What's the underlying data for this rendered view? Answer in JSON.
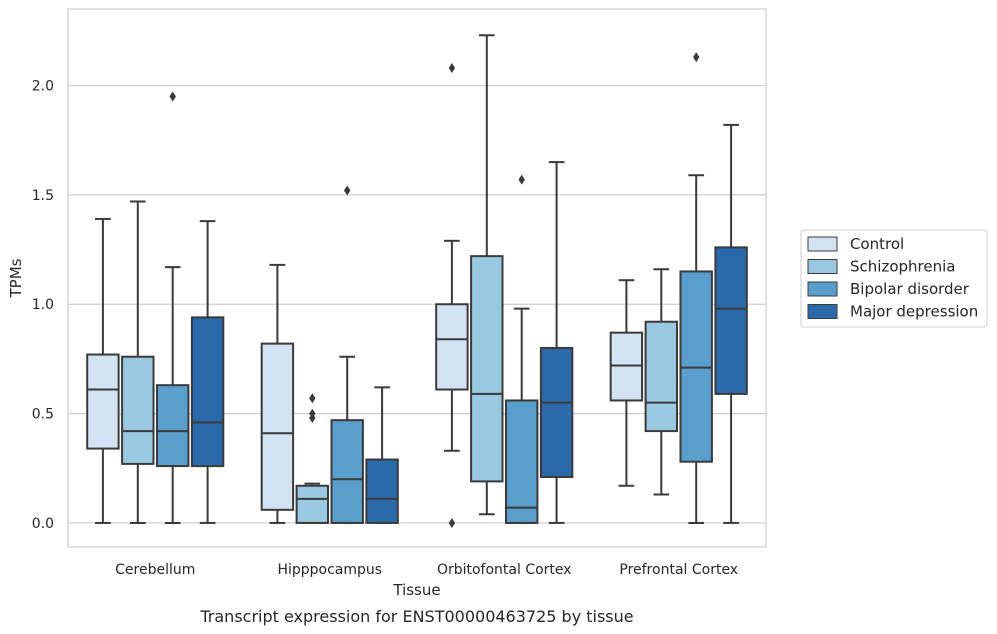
{
  "chart_data": {
    "type": "box",
    "caption": "Transcript expression for ENST00000463725 by tissue",
    "xlabel": "Tissue",
    "ylabel": "TPMs",
    "ylim": [
      -0.11,
      2.35
    ],
    "yticks": [
      0.0,
      0.5,
      1.0,
      1.5,
      2.0
    ],
    "ytick_labels": [
      "0.0",
      "0.5",
      "1.0",
      "1.5",
      "2.0"
    ],
    "grid": "horizontal",
    "legend_position": "outside-right",
    "categories": [
      "Cerebellum",
      "Hipppocampus",
      "Orbitofontal Cortex",
      "Prefrontal Cortex"
    ],
    "series": [
      {
        "name": "Control",
        "color": "#d3e3f3",
        "boxes": [
          {
            "whislo": 0.0,
            "q1": 0.34,
            "med": 0.61,
            "q3": 0.77,
            "whishi": 1.39,
            "fliers": []
          },
          {
            "whislo": 0.0,
            "q1": 0.06,
            "med": 0.41,
            "q3": 0.82,
            "whishi": 1.18,
            "fliers": []
          },
          {
            "whislo": 0.33,
            "q1": 0.61,
            "med": 0.84,
            "q3": 1.0,
            "whishi": 1.29,
            "fliers": [
              0.0,
              2.08
            ]
          },
          {
            "whislo": 0.17,
            "q1": 0.56,
            "med": 0.72,
            "q3": 0.87,
            "whishi": 1.11,
            "fliers": []
          }
        ]
      },
      {
        "name": "Schizophrenia",
        "color": "#9ac8e0",
        "boxes": [
          {
            "whislo": 0.0,
            "q1": 0.27,
            "med": 0.42,
            "q3": 0.76,
            "whishi": 1.47,
            "fliers": []
          },
          {
            "whislo": 0.0,
            "q1": 0.0,
            "med": 0.11,
            "q3": 0.17,
            "whishi": 0.18,
            "fliers": [
              0.48,
              0.5,
              0.57
            ]
          },
          {
            "whislo": 0.04,
            "q1": 0.19,
            "med": 0.59,
            "q3": 1.22,
            "whishi": 2.23,
            "fliers": []
          },
          {
            "whislo": 0.13,
            "q1": 0.42,
            "med": 0.55,
            "q3": 0.92,
            "whishi": 1.16,
            "fliers": []
          }
        ]
      },
      {
        "name": "Bipolar disorder",
        "color": "#5a9ecd",
        "boxes": [
          {
            "whislo": 0.0,
            "q1": 0.26,
            "med": 0.42,
            "q3": 0.63,
            "whishi": 1.17,
            "fliers": [
              1.95
            ]
          },
          {
            "whislo": 0.0,
            "q1": 0.0,
            "med": 0.2,
            "q3": 0.47,
            "whishi": 0.76,
            "fliers": [
              1.52
            ]
          },
          {
            "whislo": 0.0,
            "q1": 0.0,
            "med": 0.07,
            "q3": 0.56,
            "whishi": 0.98,
            "fliers": [
              1.57
            ]
          },
          {
            "whislo": 0.0,
            "q1": 0.28,
            "med": 0.71,
            "q3": 1.15,
            "whishi": 1.59,
            "fliers": [
              2.13
            ]
          }
        ]
      },
      {
        "name": "Major depression",
        "color": "#2a6aab",
        "boxes": [
          {
            "whislo": 0.0,
            "q1": 0.26,
            "med": 0.46,
            "q3": 0.94,
            "whishi": 1.38,
            "fliers": []
          },
          {
            "whislo": 0.0,
            "q1": 0.0,
            "med": 0.11,
            "q3": 0.29,
            "whishi": 0.62,
            "fliers": []
          },
          {
            "whislo": 0.0,
            "q1": 0.21,
            "med": 0.55,
            "q3": 0.8,
            "whishi": 1.65,
            "fliers": []
          },
          {
            "whislo": 0.0,
            "q1": 0.59,
            "med": 0.98,
            "q3": 1.26,
            "whishi": 1.82,
            "fliers": []
          }
        ]
      }
    ]
  }
}
